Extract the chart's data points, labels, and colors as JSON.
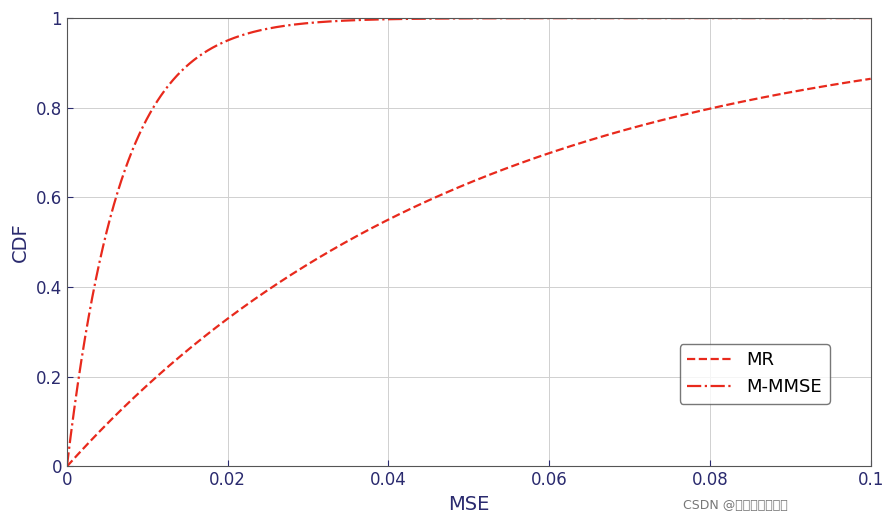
{
  "title": "",
  "xlabel": "MSE",
  "ylabel": "CDF",
  "xlim": [
    0,
    0.1
  ],
  "ylim": [
    0,
    1
  ],
  "xticks": [
    0,
    0.02,
    0.04,
    0.06,
    0.08,
    0.1
  ],
  "yticks": [
    0,
    0.2,
    0.4,
    0.6,
    0.8,
    1.0
  ],
  "line_color": "#e8291c",
  "background_color": "#ffffff",
  "grid_color": "#d0d0d0",
  "legend_labels": [
    "MR",
    "M-MMSE"
  ],
  "watermark": "CSDN @电气工程研习社",
  "mr_scale": 20,
  "mmse_scale": 150,
  "tick_color": "#2a2a6e",
  "label_color": "#2a2a6e",
  "legend_text_color": "#000000",
  "spine_color": "#555555",
  "figsize": [
    8.95,
    5.25
  ],
  "dpi": 100
}
